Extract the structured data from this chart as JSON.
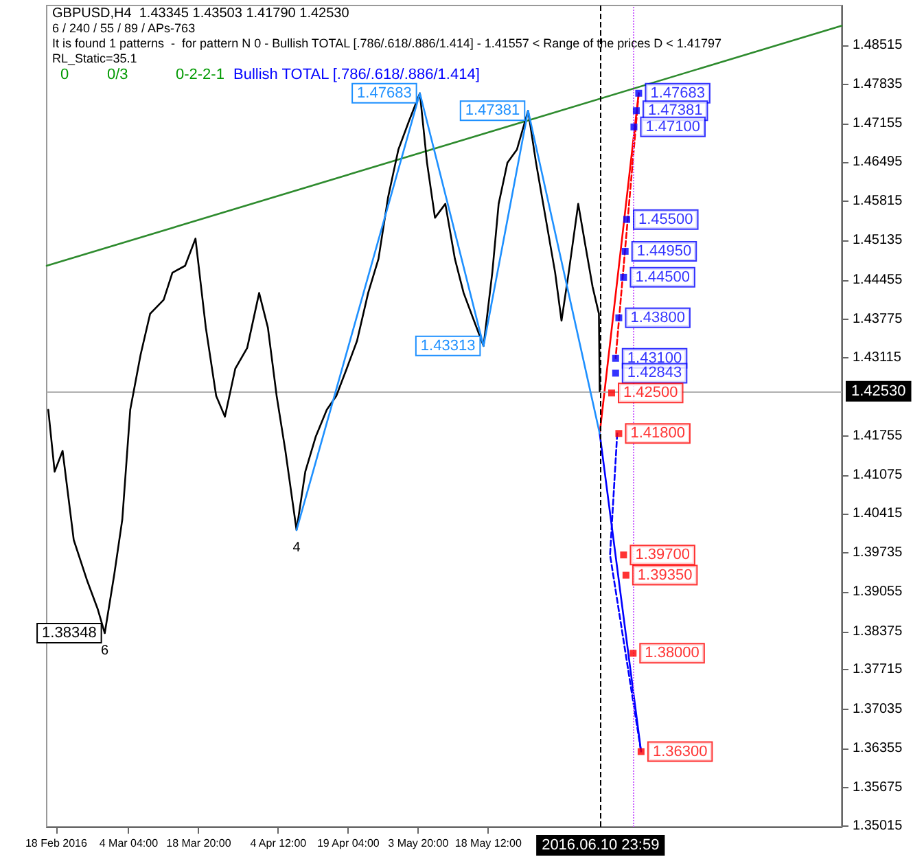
{
  "chart_data": {
    "type": "line",
    "title": "GBPUSD,H4  1.43345 1.43503 1.41790 1.42530",
    "annotations": [
      "6 / 240 / 55 / 89 / APs-763",
      "It is found 1 patterns  -  for pattern N 0 - Bullish TOTAL [.786/.618/.886/1.414] - 1.41557 < Range of the prices D < 1.41797",
      "RL_Static=35.1",
      "0",
      "0/3",
      "0-2-2-1",
      "Bullish TOTAL [.786/.618/.886/1.414]",
      {
        "text": "6",
        "x": "2016-02-28T04:00",
        "y": 1.38348
      },
      {
        "text": "4",
        "x": "2016-04-08T08:00",
        "y": 1.4013
      }
    ],
    "marker": "none",
    "xlim": [
      "2016-02-16T00:00",
      "2016-07-31T12:00"
    ],
    "xticks": [
      {
        "value": "2016-02-18T00:00",
        "label": "18 Feb 2016"
      },
      {
        "value": "2016-03-04T04:00",
        "label": "4 Mar 04:00"
      },
      {
        "value": "2016-03-18T20:00",
        "label": "18 Mar 20:00"
      },
      {
        "value": "2016-04-04T12:00",
        "label": "4 Apr 12:00"
      },
      {
        "value": "2016-04-19T04:00",
        "label": "19 Apr 04:00"
      },
      {
        "value": "2016-05-03T20:00",
        "label": "3 May 20:00"
      },
      {
        "value": "2016-05-18T12:00",
        "label": "18 May 12:00"
      }
    ],
    "ylim": [
      1.35,
      1.492
    ],
    "yticks": [
      1.35015,
      1.35675,
      1.36355,
      1.37035,
      1.37715,
      1.38375,
      1.39055,
      1.39735,
      1.40415,
      1.41075,
      1.41755,
      1.43115,
      1.43775,
      1.44455,
      1.45135,
      1.45815,
      1.46495,
      1.47155,
      1.47835,
      1.48515
    ],
    "ref_lines": [
      {
        "axis": "x",
        "value": "2016-06-10T23:59",
        "label": "2016.06.10 23:59",
        "color": "#000000",
        "line_style": "dashed"
      },
      {
        "axis": "x",
        "value": "2016-06-17T20:00",
        "color": "#cc66ff",
        "line_style": "dotted"
      },
      {
        "axis": "y",
        "value": 1.4253,
        "label": "1.42530",
        "color": "#b0b0b0",
        "line_style": "solid"
      }
    ],
    "series": [
      {
        "color": "#000000",
        "x": [
          "2016-02-16T08:00",
          "2016-02-17T16:00",
          "2016-02-19T08:00",
          "2016-02-21T16:00",
          "2016-02-24T12:00",
          "2016-02-26T16:00",
          "2016-02-28T04:00",
          "2016-03-01T04:00",
          "2016-03-02T20:00",
          "2016-03-04T12:00",
          "2016-03-06T16:00",
          "2016-03-08T16:00",
          "2016-03-11T12:00",
          "2016-03-13T08:00",
          "2016-03-16T00:00",
          "2016-03-18T04:00",
          "2016-03-20T08:00",
          "2016-03-22T12:00",
          "2016-03-24T08:00",
          "2016-03-26T12:00",
          "2016-03-29T00:00",
          "2016-03-31T12:00",
          "2016-04-02T08:00",
          "2016-04-04T04:00",
          "2016-04-06T00:00",
          "2016-04-08T08:00",
          "2016-04-10T04:00",
          "2016-04-12T08:00",
          "2016-04-14T16:00",
          "2016-04-16T16:00",
          "2016-04-18T20:00",
          "2016-04-21T00:00",
          "2016-04-23T08:00",
          "2016-04-25T12:00",
          "2016-04-27T12:00",
          "2016-04-29T16:00",
          "2016-05-01T20:00",
          "2016-05-04T04:00",
          "2016-05-05T16:00",
          "2016-05-07T08:00",
          "2016-05-09T12:00",
          "2016-05-11T12:00",
          "2016-05-13T08:00",
          "2016-05-15T12:00",
          "2016-05-17T12:00",
          "2016-05-19T08:00",
          "2016-05-20T16:00",
          "2016-05-22T12:00",
          "2016-05-24T12:00",
          "2016-05-26T20:00",
          "2016-05-28T12:00",
          "2016-05-30T12:00",
          "2016-06-01T12:00",
          "2016-06-02T20:00",
          "2016-06-04T08:00",
          "2016-06-06T08:00",
          "2016-06-07T20:00",
          "2016-06-09T08:00",
          "2016-06-10T16:00",
          "2016-06-10T20:00"
        ],
        "values": [
          1.4221,
          1.4114,
          1.415,
          1.3996,
          1.3925,
          1.3877,
          1.38348,
          1.3937,
          1.4031,
          1.4221,
          1.4316,
          1.4387,
          1.4411,
          1.4458,
          1.447,
          1.4517,
          1.4363,
          1.4245,
          1.4209,
          1.4292,
          1.4328,
          1.4423,
          1.4363,
          1.4245,
          1.415,
          1.4013,
          1.4114,
          1.4174,
          1.4221,
          1.4245,
          1.4292,
          1.434,
          1.4423,
          1.4482,
          1.4588,
          1.4671,
          1.4719,
          1.47683,
          1.4648,
          1.4553,
          1.4577,
          1.4482,
          1.4423,
          1.4375,
          1.43313,
          1.4458,
          1.4577,
          1.4648,
          1.4671,
          1.47381,
          1.4648,
          1.4553,
          1.4458,
          1.4375,
          1.4458,
          1.4577,
          1.4505,
          1.4434,
          1.4387,
          1.4253
        ],
        "value_labels": [
          null,
          null,
          null,
          null,
          null,
          null,
          "1.38348",
          null,
          null,
          null,
          null,
          null,
          null,
          null,
          null,
          null,
          null,
          null,
          null,
          null,
          null,
          null,
          null,
          null,
          null,
          null,
          null,
          null,
          null,
          null,
          null,
          null,
          null,
          null,
          null,
          null,
          null,
          null,
          null,
          null,
          null,
          null,
          null,
          null,
          null,
          null,
          null,
          null,
          null,
          null,
          null,
          null,
          null,
          null,
          null,
          null,
          null,
          null,
          null,
          null
        ]
      },
      {
        "color": "#1e90ff",
        "x": [
          "2016-04-08T08:00",
          "2016-05-04T04:00",
          "2016-05-17T12:00",
          "2016-05-26T20:00",
          "2016-06-10T20:00"
        ],
        "values": [
          1.4013,
          1.47683,
          1.43313,
          1.47381,
          1.418
        ],
        "value_labels": [
          null,
          "1.47683",
          "1.43313",
          "1.47381",
          null
        ]
      },
      {
        "color": "#2e8b2e",
        "x": [
          "2016-02-16T00:00",
          "2016-07-31T12:00"
        ],
        "values": [
          1.447,
          1.4885
        ]
      },
      {
        "color": "#ff0000",
        "x": [
          "2016-06-10T20:00",
          "2016-06-19T00:00"
        ],
        "values": [
          1.418,
          1.47683
        ]
      },
      {
        "color": "#ff0000",
        "line_style": "dashed",
        "x": [
          "2016-06-19T00:00",
          "2016-06-14T04:00"
        ],
        "values": [
          1.47683,
          1.431
        ]
      },
      {
        "color": "#0000ff",
        "x": [
          "2016-06-10T20:00",
          "2016-06-19T12:00"
        ],
        "values": [
          1.418,
          1.363
        ]
      },
      {
        "color": "#0000ff",
        "line_style": "dashed",
        "x": [
          "2016-06-14T12:00",
          "2016-06-13T00:00",
          "2016-06-19T12:00"
        ],
        "values": [
          1.418,
          1.397,
          1.363
        ]
      },
      {
        "type": "scatter",
        "marker": "square",
        "color": "#0000ff",
        "x": [
          "2016-06-19T00:00",
          "2016-06-18T12:00",
          "2016-06-18T00:00",
          "2016-06-16T12:00",
          "2016-06-16T04:00",
          "2016-06-15T20:00",
          "2016-06-14T20:00",
          "2016-06-14T04:00",
          "2016-06-14T04:00"
        ],
        "values": [
          1.47683,
          1.47381,
          1.471,
          1.455,
          1.4495,
          1.445,
          1.438,
          1.431,
          1.42843
        ],
        "value_labels": [
          "1.47683",
          "1.47381",
          "1.47100",
          "1.45500",
          "1.44950",
          "1.44500",
          "1.43800",
          "1.43100",
          "1.42843"
        ]
      },
      {
        "type": "scatter",
        "marker": "square",
        "color": "#ff0000",
        "x": [
          "2016-06-13T08:00",
          "2016-06-14T20:00",
          "2016-06-15T20:00",
          "2016-06-16T08:00",
          "2016-06-17T20:00",
          "2016-06-19T12:00"
        ],
        "values": [
          1.425,
          1.418,
          1.397,
          1.3935,
          1.38,
          1.363
        ],
        "value_labels": [
          "1.42500",
          "1.41800",
          "1.39700",
          "1.39350",
          "1.38000",
          "1.36300"
        ]
      }
    ]
  }
}
